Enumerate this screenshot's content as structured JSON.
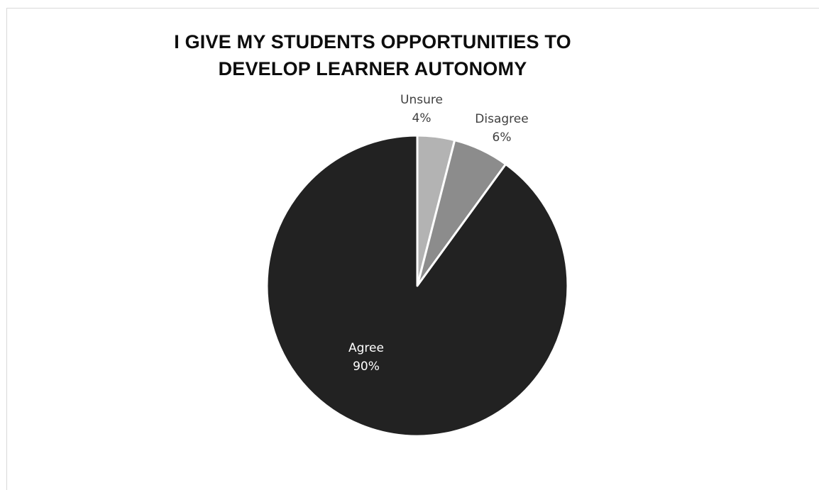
{
  "chart_data": {
    "type": "pie",
    "title_lines": [
      "I GIVE MY STUDENTS OPPORTUNITIES TO",
      "DEVELOP LEARNER AUTONOMY"
    ],
    "slices": [
      {
        "label": "Unsure",
        "value": 4,
        "value_label": "4%",
        "color": "#b3b3b3",
        "label_color": "#404040"
      },
      {
        "label": "Disagree",
        "value": 6,
        "value_label": "6%",
        "color": "#8c8c8c",
        "label_color": "#404040"
      },
      {
        "label": "Agree",
        "value": 90,
        "value_label": "90%",
        "color": "#222222",
        "label_color": "#ffffff"
      }
    ],
    "start_angle": "12 o'clock",
    "direction": "clockwise",
    "legend": "none"
  }
}
